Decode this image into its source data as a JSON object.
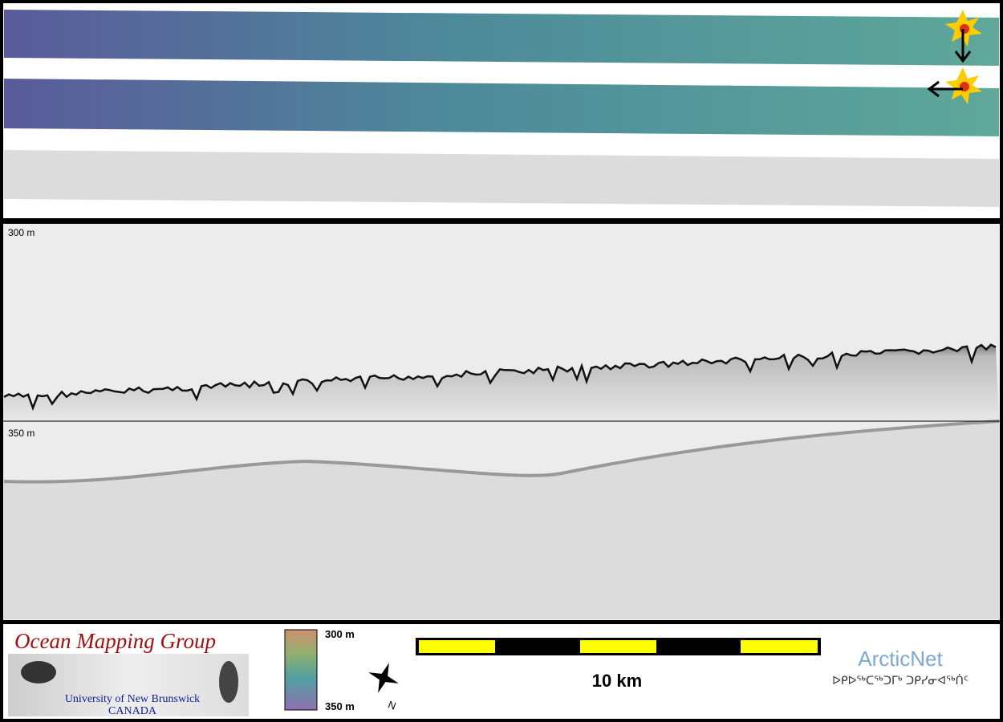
{
  "echogram": {
    "depth_labels": [
      "300 m",
      "350 m"
    ]
  },
  "footer": {
    "logo": {
      "title": "Ocean Mapping Group",
      "university": "University of New Brunswick",
      "country": "CANADA"
    },
    "color_scale": {
      "top": "300 m",
      "bottom": "350 m"
    },
    "compass": {
      "label": "N"
    },
    "scale_bar": {
      "label": "10 km"
    },
    "arcticnet": {
      "name": "ArcticNet",
      "inuktitut": "ᐅᑭᐅᖅᑕᖅᑐᒥᒃ ᑐᑭᓯᓂᐊᖅᑏᑦ"
    }
  }
}
